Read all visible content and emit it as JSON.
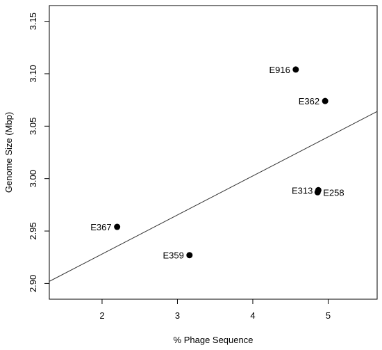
{
  "chart_data": {
    "type": "scatter",
    "title": "",
    "xlabel": "% Phage Sequence",
    "ylabel": "Genome Size (Mbp)",
    "xlim": [
      1.3,
      5.65
    ],
    "ylim": [
      2.885,
      3.165
    ],
    "x_ticks": [
      2,
      3,
      4,
      5
    ],
    "x_tick_labels": [
      "2",
      "3",
      "4",
      "5"
    ],
    "y_ticks": [
      2.9,
      2.95,
      3.0,
      3.05,
      3.1,
      3.15
    ],
    "y_tick_labels": [
      "2.90",
      "2.95",
      "3.00",
      "3.05",
      "3.10",
      "3.15"
    ],
    "grid": false,
    "points": [
      {
        "label": "E916",
        "x": 4.57,
        "y": 3.104,
        "label_side": "left"
      },
      {
        "label": "E362",
        "x": 4.96,
        "y": 3.074,
        "label_side": "left"
      },
      {
        "label": "E313",
        "x": 4.87,
        "y": 2.989,
        "label_side": "left"
      },
      {
        "label": "E258",
        "x": 4.86,
        "y": 2.987,
        "label_side": "right"
      },
      {
        "label": "E367",
        "x": 2.2,
        "y": 2.954,
        "label_side": "left"
      },
      {
        "label": "E359",
        "x": 3.16,
        "y": 2.927,
        "label_side": "left"
      }
    ],
    "trend_line": {
      "x1": 1.3,
      "y1": 2.902,
      "x2": 5.65,
      "y2": 3.064
    },
    "colors": {
      "point": "#000000",
      "line": "#333333",
      "axis": "#000000"
    }
  }
}
